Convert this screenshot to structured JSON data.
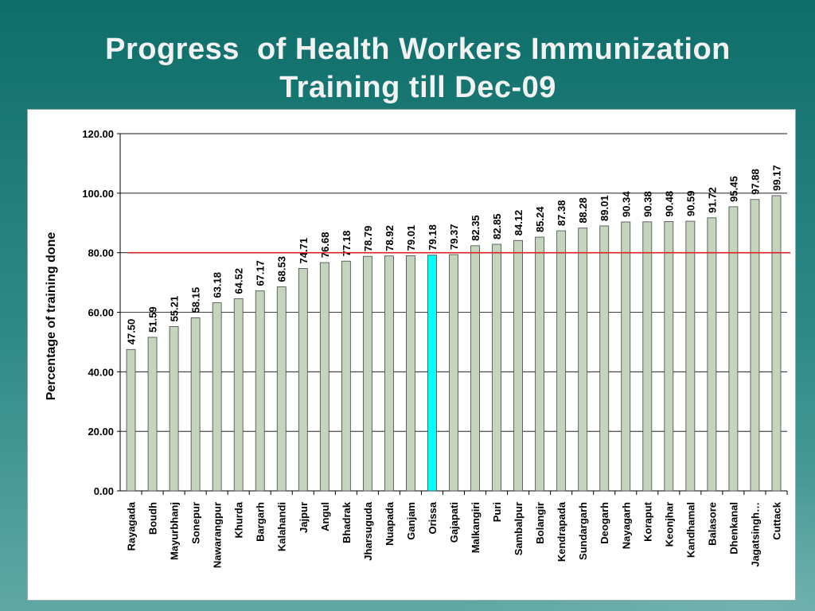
{
  "slide": {
    "title_line1": "Progress  of Health Workers Immunization",
    "title_line2": "Training till Dec-09"
  },
  "chart_data": {
    "type": "bar",
    "title": "",
    "xlabel": "",
    "ylabel": "Percentage of training done",
    "ylim": [
      0,
      120
    ],
    "yticks": [
      "0.00",
      "20.00",
      "40.00",
      "60.00",
      "80.00",
      "100.00",
      "120.00"
    ],
    "grid": true,
    "reference_line": {
      "value": 80,
      "color": "#e02020"
    },
    "bar_color": "#c3d6bd",
    "highlight_color": "#00ffff",
    "highlight_category": "Orissa",
    "categories": [
      "Rayagada",
      "Boudh",
      "Mayurbhanj",
      "Sonepur",
      "Nawarangpur",
      "Khurda",
      "Bargarh",
      "Kalahandi",
      "Jajpur",
      "Angul",
      "Bhadrak",
      "Jharsuguda",
      "Nuapada",
      "Ganjam",
      "Orissa",
      "Gajapati",
      "Malkangiri",
      "Puri",
      "Sambalpur",
      "Bolangir",
      "Kendrapada",
      "Sundargarh",
      "Deogarh",
      "Nayagarh",
      "Koraput",
      "Keonjhar",
      "Kandhamal",
      "Balasore",
      "Dhenkanal",
      "Jagatsingh…",
      "Cuttack"
    ],
    "values": [
      47.5,
      51.59,
      55.21,
      58.15,
      63.18,
      64.52,
      67.17,
      68.53,
      74.71,
      76.68,
      77.18,
      78.79,
      78.92,
      79.01,
      79.18,
      79.37,
      82.35,
      82.85,
      84.12,
      85.24,
      87.38,
      88.28,
      89.01,
      90.34,
      90.38,
      90.48,
      90.59,
      91.72,
      95.45,
      97.88,
      99.17
    ],
    "value_labels": [
      "47.50",
      "51.59",
      "55.21",
      "58.15",
      "63.18",
      "64.52",
      "67.17",
      "68.53",
      "74.71",
      "76.68",
      "77.18",
      "78.79",
      "78.92",
      "79.01",
      "79.18",
      "79.37",
      "82.35",
      "82.85",
      "84.12",
      "85.24",
      "87.38",
      "88.28",
      "89.01",
      "90.34",
      "90.38",
      "90.48",
      "90.59",
      "91.72",
      "95.45",
      "97.88",
      "99.17"
    ]
  }
}
